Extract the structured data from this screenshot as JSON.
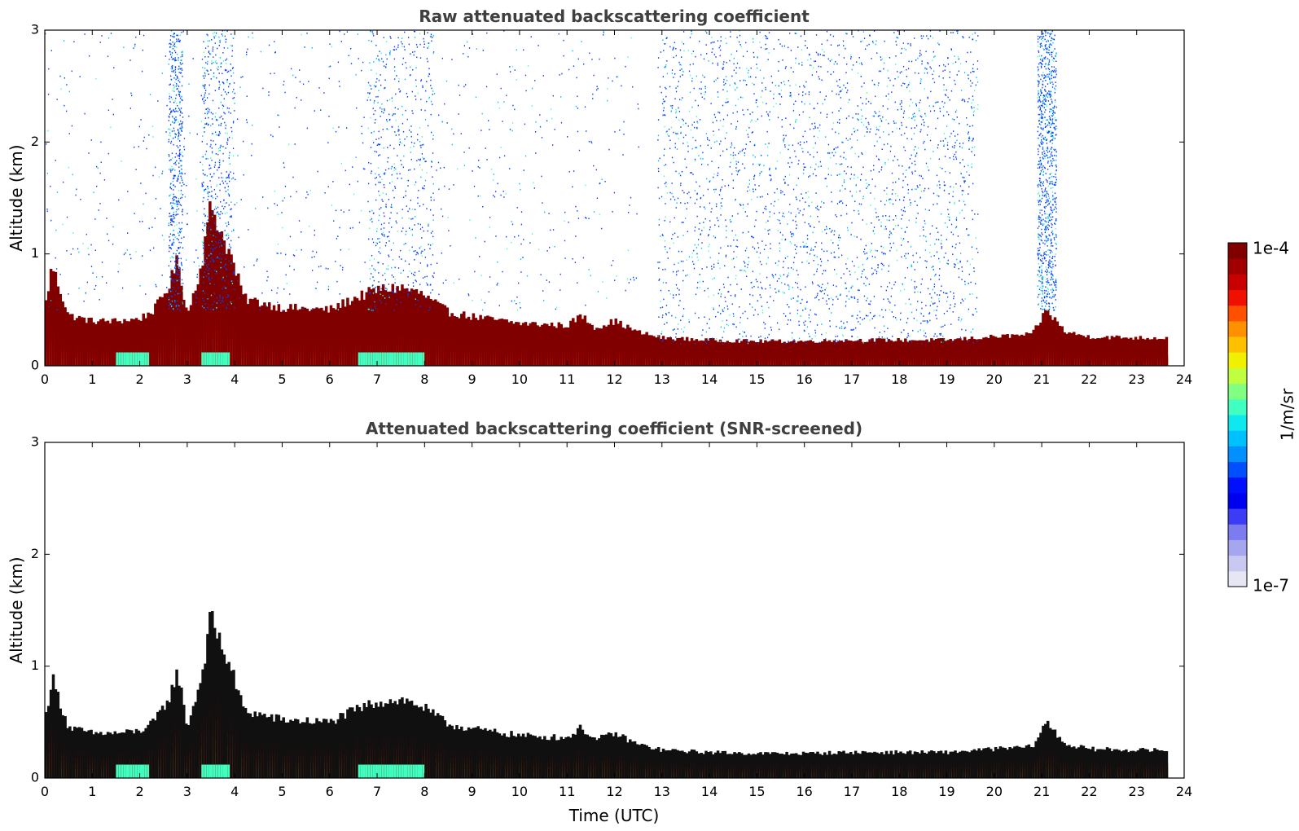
{
  "chart_data": [
    {
      "type": "heatmap",
      "title": "Raw attenuated backscattering coefficient",
      "xlabel": "",
      "ylabel": "Altitude (km)",
      "xlim": [
        0,
        24
      ],
      "ylim": [
        0,
        3
      ],
      "x_ticks": [
        0,
        1,
        2,
        3,
        4,
        5,
        6,
        7,
        8,
        9,
        10,
        11,
        12,
        13,
        14,
        15,
        16,
        17,
        18,
        19,
        20,
        21,
        22,
        23,
        24
      ],
      "y_ticks": [
        0,
        1,
        2,
        3
      ],
      "data_end_hour": 23.65,
      "boundary_layer_top_km": {
        "x": [
          0,
          0.15,
          0.3,
          0.5,
          1,
          1.5,
          2,
          2.3,
          2.6,
          2.8,
          3,
          3.3,
          3.5,
          3.7,
          3.9,
          4.2,
          5,
          6,
          6.5,
          7,
          7.5,
          7.9,
          8.5,
          9,
          10,
          11,
          11.3,
          11.6,
          12,
          12.5,
          13,
          14,
          15,
          16,
          17,
          18,
          19,
          20,
          20.8,
          21.1,
          21.5,
          22,
          23,
          23.65
        ],
        "y": [
          0.5,
          0.9,
          0.7,
          0.45,
          0.4,
          0.4,
          0.42,
          0.5,
          0.7,
          0.95,
          0.45,
          0.9,
          1.45,
          1.2,
          1.0,
          0.6,
          0.52,
          0.5,
          0.6,
          0.68,
          0.7,
          0.65,
          0.48,
          0.44,
          0.38,
          0.36,
          0.45,
          0.34,
          0.4,
          0.3,
          0.25,
          0.23,
          0.22,
          0.22,
          0.23,
          0.23,
          0.23,
          0.26,
          0.28,
          0.5,
          0.3,
          0.26,
          0.25,
          0.25
        ]
      },
      "noise_regions": [
        {
          "x": [
            0,
            12.5
          ],
          "y": [
            0.5,
            3
          ],
          "density": "sparse"
        },
        {
          "x": [
            2.6,
            2.9
          ],
          "y": [
            0.5,
            3
          ],
          "density": "moderate"
        },
        {
          "x": [
            3.3,
            4.0
          ],
          "y": [
            0.5,
            3
          ],
          "density": "moderate"
        },
        {
          "x": [
            6.8,
            8.2
          ],
          "y": [
            0.5,
            3
          ],
          "density": "moderate"
        },
        {
          "x": [
            12.9,
            19.65
          ],
          "y": [
            0.2,
            3
          ],
          "density": "dense"
        },
        {
          "x": [
            20.9,
            21.3
          ],
          "y": [
            0.5,
            3
          ],
          "density": "sparse"
        }
      ]
    },
    {
      "type": "heatmap",
      "title": "Attenuated backscattering coefficient (SNR-screened)",
      "xlabel": "Time (UTC)",
      "ylabel": "Altitude (km)",
      "xlim": [
        0,
        24
      ],
      "ylim": [
        0,
        3
      ],
      "x_ticks": [
        0,
        1,
        2,
        3,
        4,
        5,
        6,
        7,
        8,
        9,
        10,
        11,
        12,
        13,
        14,
        15,
        16,
        17,
        18,
        19,
        20,
        21,
        22,
        23,
        24
      ],
      "y_ticks": [
        0,
        1,
        2,
        3
      ],
      "data_end_hour": 23.65,
      "boundary_layer_top_km": {
        "x": [
          0,
          0.15,
          0.3,
          0.5,
          1,
          1.5,
          2,
          2.3,
          2.6,
          2.8,
          3,
          3.3,
          3.5,
          3.7,
          3.9,
          4.2,
          5,
          6,
          6.5,
          7,
          7.5,
          7.9,
          8.5,
          9,
          10,
          11,
          11.3,
          11.6,
          12,
          12.5,
          13,
          14,
          15,
          16,
          17,
          18,
          19,
          20,
          20.8,
          21.1,
          21.5,
          22,
          23,
          23.65
        ],
        "y": [
          0.5,
          0.9,
          0.7,
          0.45,
          0.4,
          0.4,
          0.42,
          0.5,
          0.7,
          0.95,
          0.45,
          0.9,
          1.45,
          1.2,
          1.0,
          0.6,
          0.52,
          0.5,
          0.6,
          0.68,
          0.7,
          0.65,
          0.48,
          0.44,
          0.38,
          0.36,
          0.45,
          0.34,
          0.4,
          0.3,
          0.25,
          0.23,
          0.22,
          0.22,
          0.23,
          0.23,
          0.23,
          0.26,
          0.28,
          0.5,
          0.3,
          0.26,
          0.25,
          0.25
        ]
      },
      "noise_regions": []
    }
  ],
  "colorbar": {
    "label": "1/m/sr",
    "max_label": "1e-4",
    "min_label": "1e-7",
    "colors": [
      "#e6e6f5",
      "#c8c8f0",
      "#a6a6f0",
      "#7c7cf0",
      "#3c3cf5",
      "#0000f0",
      "#0010ff",
      "#0050ff",
      "#0090ff",
      "#00c0ff",
      "#10e8f0",
      "#40ffc0",
      "#80ff80",
      "#c0ff40",
      "#f0f000",
      "#ffc000",
      "#ff9000",
      "#ff5000",
      "#f01000",
      "#c80000",
      "#a00000",
      "#800000"
    ]
  }
}
